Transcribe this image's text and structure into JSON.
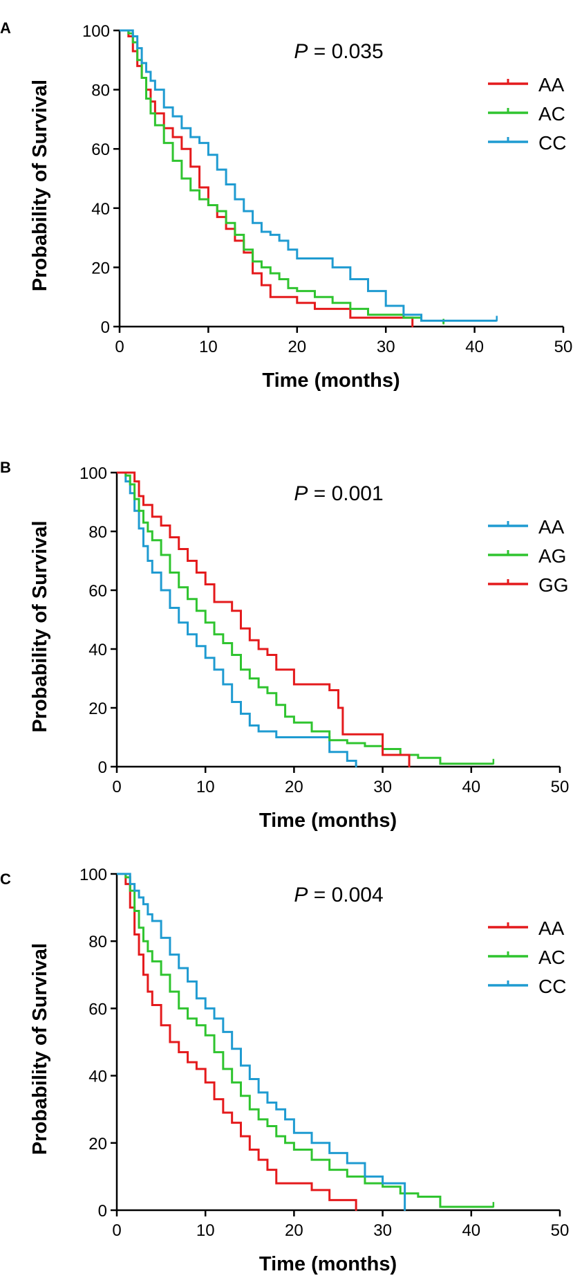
{
  "chart_data": [
    {
      "type": "line",
      "subtype": "kaplan-meier",
      "panel_label": "A",
      "annotation": {
        "prefix": "P",
        "text": " = 0.035"
      },
      "xlabel": "Time (months)",
      "ylabel": "Probability of Survival",
      "xlim": [
        0,
        50
      ],
      "ylim": [
        0,
        100
      ],
      "xticks": [
        "0",
        "10",
        "20",
        "30",
        "40",
        "50"
      ],
      "yticks": [
        "0",
        "20",
        "40",
        "60",
        "80",
        "100"
      ],
      "legend_position": "top-right",
      "series": [
        {
          "name": "AA",
          "color": "#e41a1c",
          "x": [
            0,
            1,
            1.5,
            2,
            2.5,
            3,
            3.5,
            4,
            5,
            6,
            7,
            8,
            9,
            10,
            11,
            12,
            13,
            14,
            15,
            16,
            17,
            18,
            20,
            22,
            24,
            26,
            28,
            30,
            33
          ],
          "y": [
            100,
            98,
            93,
            88,
            84,
            80,
            76,
            72,
            67,
            64,
            60,
            54,
            47,
            41,
            37,
            33,
            29,
            25,
            18,
            14,
            10,
            10,
            8,
            6,
            6,
            3,
            3,
            3,
            0
          ]
        },
        {
          "name": "AC",
          "color": "#2fc42f",
          "x": [
            0,
            1,
            1.5,
            2,
            2.5,
            3,
            3.5,
            4,
            5,
            6,
            7,
            8,
            9,
            10,
            11,
            12,
            13,
            14,
            15,
            16,
            17,
            18,
            19,
            20,
            22,
            24,
            26,
            28,
            30,
            32,
            34,
            36.5
          ],
          "y": [
            100,
            99,
            96,
            90,
            84,
            77,
            72,
            68,
            62,
            56,
            50,
            46,
            43,
            41,
            39,
            35,
            31,
            26,
            22,
            20,
            18,
            16,
            13,
            12,
            10,
            8,
            6,
            4,
            4,
            3,
            2,
            1
          ]
        },
        {
          "name": "CC",
          "color": "#1f9bd1",
          "x": [
            0,
            1,
            1.5,
            2,
            2.5,
            3,
            3.5,
            4,
            5,
            6,
            7,
            8,
            9,
            10,
            11,
            12,
            13,
            14,
            15,
            16,
            17,
            18,
            19,
            20,
            22,
            24,
            26,
            28,
            30,
            32,
            34,
            36,
            40,
            42.5
          ],
          "y": [
            100,
            100,
            98,
            94,
            89,
            86,
            83,
            80,
            74,
            71,
            67,
            64,
            62,
            58,
            53,
            48,
            43,
            39,
            35,
            32,
            31,
            29,
            26,
            23,
            23,
            20,
            16,
            12,
            7,
            4,
            2,
            2,
            2,
            2
          ]
        }
      ]
    },
    {
      "type": "line",
      "subtype": "kaplan-meier",
      "panel_label": "B",
      "annotation": {
        "prefix": "P",
        "text": " = 0.001"
      },
      "xlabel": "Time (months)",
      "ylabel": "Probability of Survival",
      "xlim": [
        0,
        50
      ],
      "ylim": [
        0,
        100
      ],
      "xticks": [
        "0",
        "10",
        "20",
        "30",
        "40",
        "50"
      ],
      "yticks": [
        "0",
        "20",
        "40",
        "60",
        "80",
        "100"
      ],
      "legend_position": "top-right",
      "series": [
        {
          "name": "AA",
          "color": "#1f9bd1",
          "x": [
            0,
            1,
            1.5,
            2,
            2.5,
            3,
            3.5,
            4,
            5,
            6,
            7,
            8,
            9,
            10,
            11,
            12,
            13,
            14,
            15,
            16,
            17,
            18,
            20,
            22,
            24,
            26,
            27
          ],
          "y": [
            100,
            97,
            93,
            87,
            81,
            75,
            70,
            66,
            60,
            54,
            49,
            45,
            41,
            37,
            33,
            28,
            22,
            18,
            14,
            12,
            12,
            10,
            10,
            10,
            5,
            2,
            0
          ]
        },
        {
          "name": "AG",
          "color": "#2fc42f",
          "x": [
            0,
            1,
            1.5,
            2,
            2.5,
            3,
            3.5,
            4,
            5,
            6,
            7,
            8,
            9,
            10,
            11,
            12,
            13,
            14,
            15,
            16,
            17,
            18,
            19,
            20,
            22,
            24,
            26,
            28,
            30,
            32,
            34,
            36.5,
            40,
            42.5
          ],
          "y": [
            100,
            99,
            96,
            91,
            87,
            83,
            80,
            77,
            72,
            66,
            61,
            57,
            53,
            49,
            45,
            42,
            38,
            33,
            30,
            27,
            25,
            21,
            17,
            15,
            12,
            9,
            8,
            7,
            6,
            4,
            3,
            1,
            1,
            1
          ]
        },
        {
          "name": "GG",
          "color": "#e41a1c",
          "x": [
            0,
            2,
            2.5,
            3,
            4,
            5,
            6,
            7,
            8,
            9,
            10,
            11,
            13,
            14,
            15,
            16,
            17,
            18,
            20,
            23,
            24,
            25,
            25.5,
            30,
            33
          ],
          "y": [
            100,
            97,
            92,
            89,
            85,
            82,
            78,
            74,
            70,
            66,
            62,
            56,
            53,
            47,
            43,
            40,
            38,
            33,
            28,
            28,
            26,
            20,
            11,
            4,
            0
          ]
        }
      ]
    },
    {
      "type": "line",
      "subtype": "kaplan-meier",
      "panel_label": "C",
      "annotation": {
        "prefix": "P",
        "text": " = 0.004"
      },
      "xlabel": "Time (months)",
      "ylabel": "Probability of Survival",
      "xlim": [
        0,
        50
      ],
      "ylim": [
        0,
        100
      ],
      "xticks": [
        "0",
        "10",
        "20",
        "30",
        "40",
        "50"
      ],
      "yticks": [
        "0",
        "20",
        "40",
        "60",
        "80",
        "100"
      ],
      "legend_position": "top-right",
      "series": [
        {
          "name": "AA",
          "color": "#e41a1c",
          "x": [
            0,
            1,
            1.5,
            2,
            2.5,
            3,
            3.5,
            4,
            5,
            6,
            7,
            8,
            9,
            10,
            11,
            12,
            13,
            14,
            15,
            16,
            17,
            18,
            20,
            22,
            24,
            26,
            27
          ],
          "y": [
            100,
            97,
            90,
            82,
            76,
            70,
            65,
            61,
            55,
            50,
            47,
            44,
            42,
            38,
            33,
            29,
            26,
            22,
            18,
            15,
            12,
            8,
            8,
            6,
            3,
            3,
            0
          ]
        },
        {
          "name": "AC",
          "color": "#2fc42f",
          "x": [
            0,
            1,
            1.5,
            2,
            2.5,
            3,
            3.5,
            4,
            5,
            6,
            7,
            8,
            9,
            10,
            11,
            12,
            13,
            14,
            15,
            16,
            17,
            18,
            19,
            20,
            22,
            24,
            26,
            28,
            30,
            32,
            34,
            36.5,
            40,
            42.5
          ],
          "y": [
            100,
            99,
            95,
            89,
            84,
            80,
            77,
            74,
            70,
            65,
            60,
            57,
            55,
            52,
            47,
            42,
            38,
            34,
            30,
            27,
            25,
            22,
            20,
            18,
            15,
            12,
            10,
            8,
            7,
            5,
            4,
            1,
            1,
            1
          ]
        },
        {
          "name": "CC",
          "color": "#1f9bd1",
          "x": [
            0,
            1,
            1.5,
            2,
            2.5,
            3,
            3.5,
            4,
            5,
            6,
            7,
            8,
            9,
            10,
            11,
            12,
            13,
            14,
            15,
            16,
            17,
            18,
            19,
            20,
            22,
            24,
            26,
            28,
            30,
            32.5
          ],
          "y": [
            100,
            100,
            97,
            95,
            93,
            91,
            88,
            86,
            81,
            76,
            72,
            68,
            63,
            60,
            57,
            53,
            48,
            43,
            39,
            35,
            32,
            30,
            27,
            23,
            20,
            17,
            14,
            10,
            8,
            0
          ]
        }
      ]
    }
  ]
}
